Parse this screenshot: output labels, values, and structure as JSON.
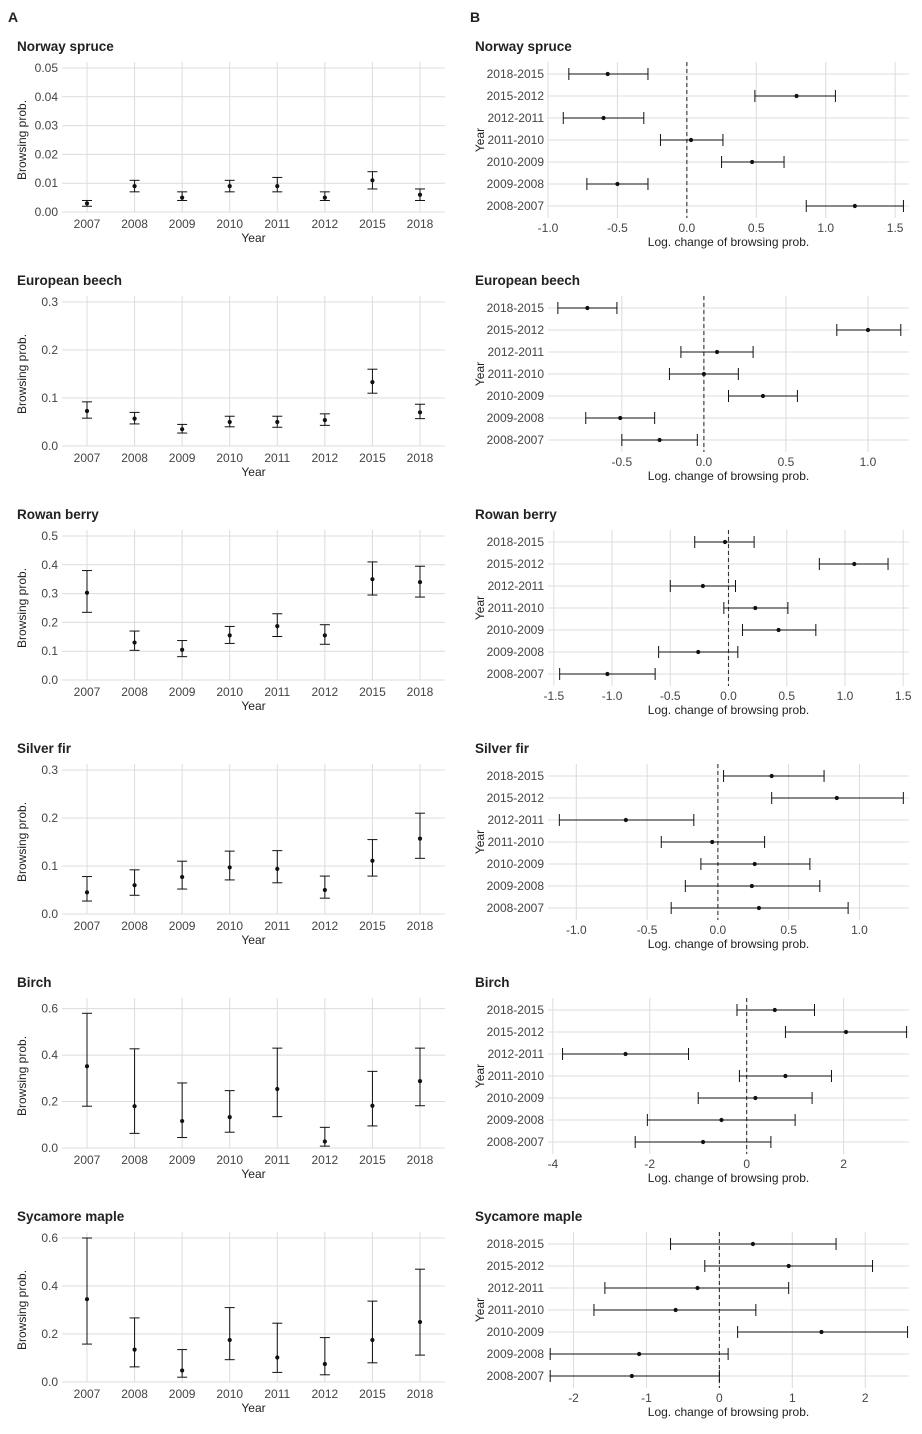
{
  "panel_labels": {
    "a": "A",
    "b": "B"
  },
  "chart_data": [
    {
      "type": "errorbar",
      "panel": "A",
      "title": "Norway spruce",
      "xlabel": "Year",
      "ylabel": "Browsing prob.",
      "categories": [
        "2007",
        "2008",
        "2009",
        "2010",
        "2011",
        "2012",
        "2015",
        "2018"
      ],
      "values": [
        0.003,
        0.009,
        0.005,
        0.009,
        0.009,
        0.005,
        0.011,
        0.006
      ],
      "lower": [
        0.002,
        0.007,
        0.004,
        0.007,
        0.007,
        0.004,
        0.008,
        0.004
      ],
      "upper": [
        0.004,
        0.011,
        0.007,
        0.011,
        0.012,
        0.007,
        0.014,
        0.008
      ],
      "ylim": [
        0,
        0.05
      ],
      "yticks": [
        0,
        0.01,
        0.02,
        0.03,
        0.04,
        0.05
      ],
      "yticklabels": [
        "0.00",
        "0.01",
        "0.02",
        "0.03",
        "0.04",
        "0.05"
      ]
    },
    {
      "type": "forest",
      "panel": "B",
      "title": "Norway spruce",
      "xlabel": "Log. change of browsing prob.",
      "ylabel": "Year",
      "categories": [
        "2018-2015",
        "2015-2012",
        "2012-2011",
        "2011-2010",
        "2010-2009",
        "2009-2008",
        "2008-2007"
      ],
      "values": [
        -0.57,
        0.79,
        -0.6,
        0.03,
        0.47,
        -0.5,
        1.21
      ],
      "lower": [
        -0.85,
        0.49,
        -0.89,
        -0.19,
        0.25,
        -0.72,
        0.86
      ],
      "upper": [
        -0.28,
        1.07,
        -0.31,
        0.26,
        0.7,
        -0.28,
        1.56
      ],
      "xlim": [
        -1.0,
        1.6
      ],
      "xticks": [
        -1.0,
        -0.5,
        0.0,
        0.5,
        1.0,
        1.5
      ],
      "xticklabels": [
        "-1.0",
        "-0.5",
        "0.0",
        "0.5",
        "1.0",
        "1.5"
      ],
      "refline": 0
    },
    {
      "type": "errorbar",
      "panel": "A",
      "title": "European beech",
      "xlabel": "Year",
      "ylabel": "Browsing prob.",
      "categories": [
        "2007",
        "2008",
        "2009",
        "2010",
        "2011",
        "2012",
        "2015",
        "2018"
      ],
      "values": [
        0.073,
        0.057,
        0.035,
        0.05,
        0.05,
        0.054,
        0.133,
        0.07
      ],
      "lower": [
        0.058,
        0.046,
        0.027,
        0.04,
        0.039,
        0.043,
        0.11,
        0.057
      ],
      "upper": [
        0.092,
        0.07,
        0.045,
        0.062,
        0.062,
        0.067,
        0.16,
        0.087
      ],
      "ylim": [
        0,
        0.3
      ],
      "yticks": [
        0,
        0.1,
        0.2,
        0.3
      ],
      "yticklabels": [
        "0.0",
        "0.1",
        "0.2",
        "0.3"
      ]
    },
    {
      "type": "forest",
      "panel": "B",
      "title": "European beech",
      "xlabel": "Log. change of browsing prob.",
      "ylabel": "Year",
      "categories": [
        "2018-2015",
        "2015-2012",
        "2012-2011",
        "2011-2010",
        "2010-2009",
        "2009-2008",
        "2008-2007"
      ],
      "values": [
        -0.71,
        1.0,
        0.08,
        0.0,
        0.36,
        -0.51,
        -0.27
      ],
      "lower": [
        -0.89,
        0.81,
        -0.14,
        -0.21,
        0.15,
        -0.72,
        -0.5
      ],
      "upper": [
        -0.53,
        1.2,
        0.3,
        0.21,
        0.57,
        -0.3,
        -0.04
      ],
      "xlim": [
        -0.95,
        1.25
      ],
      "xticks": [
        -0.5,
        0.0,
        0.5,
        1.0
      ],
      "xticklabels": [
        "-0.5",
        "0.0",
        "0.5",
        "1.0"
      ],
      "refline": 0
    },
    {
      "type": "errorbar",
      "panel": "A",
      "title": "Rowan berry",
      "xlabel": "Year",
      "ylabel": "Browsing prob.",
      "categories": [
        "2007",
        "2008",
        "2009",
        "2010",
        "2011",
        "2012",
        "2015",
        "2018"
      ],
      "values": [
        0.303,
        0.13,
        0.105,
        0.155,
        0.187,
        0.155,
        0.35,
        0.34
      ],
      "lower": [
        0.235,
        0.103,
        0.081,
        0.127,
        0.151,
        0.124,
        0.295,
        0.288
      ],
      "upper": [
        0.38,
        0.17,
        0.137,
        0.186,
        0.23,
        0.192,
        0.41,
        0.395
      ],
      "ylim": [
        0,
        0.5
      ],
      "yticks": [
        0,
        0.1,
        0.2,
        0.3,
        0.4,
        0.5
      ],
      "yticklabels": [
        "0.0",
        "0.1",
        "0.2",
        "0.3",
        "0.4",
        "0.5"
      ]
    },
    {
      "type": "forest",
      "panel": "B",
      "title": "Rowan berry",
      "xlabel": "Log. change of browsing prob.",
      "ylabel": "Year",
      "categories": [
        "2018-2015",
        "2015-2012",
        "2012-2011",
        "2011-2010",
        "2010-2009",
        "2009-2008",
        "2008-2007"
      ],
      "values": [
        -0.03,
        1.08,
        -0.22,
        0.23,
        0.43,
        -0.26,
        -1.04
      ],
      "lower": [
        -0.29,
        0.78,
        -0.5,
        -0.04,
        0.12,
        -0.6,
        -1.45
      ],
      "upper": [
        0.22,
        1.37,
        0.06,
        0.51,
        0.75,
        0.08,
        -0.63
      ],
      "xlim": [
        -1.55,
        1.55
      ],
      "xticks": [
        -1.5,
        -1.0,
        -0.5,
        0.0,
        0.5,
        1.0,
        1.5
      ],
      "xticklabels": [
        "-1.5",
        "-1.0",
        "-0.5",
        "0.0",
        "0.5",
        "1.0",
        "1.5"
      ],
      "refline": 0
    },
    {
      "type": "errorbar",
      "panel": "A",
      "title": "Silver fir",
      "xlabel": "Year",
      "ylabel": "Browsing prob.",
      "categories": [
        "2007",
        "2008",
        "2009",
        "2010",
        "2011",
        "2012",
        "2015",
        "2018"
      ],
      "values": [
        0.045,
        0.06,
        0.077,
        0.097,
        0.094,
        0.05,
        0.111,
        0.157
      ],
      "lower": [
        0.027,
        0.039,
        0.052,
        0.071,
        0.065,
        0.033,
        0.079,
        0.116
      ],
      "upper": [
        0.078,
        0.092,
        0.11,
        0.131,
        0.132,
        0.079,
        0.155,
        0.21
      ],
      "ylim": [
        0,
        0.3
      ],
      "yticks": [
        0,
        0.1,
        0.2,
        0.3
      ],
      "yticklabels": [
        "0.0",
        "0.1",
        "0.2",
        "0.3"
      ]
    },
    {
      "type": "forest",
      "panel": "B",
      "title": "Silver fir",
      "xlabel": "Log. change of browsing prob.",
      "ylabel": "Year",
      "categories": [
        "2018-2015",
        "2015-2012",
        "2012-2011",
        "2011-2010",
        "2010-2009",
        "2009-2008",
        "2008-2007"
      ],
      "values": [
        0.38,
        0.84,
        -0.65,
        -0.04,
        0.26,
        0.24,
        0.29
      ],
      "lower": [
        0.04,
        0.38,
        -1.12,
        -0.4,
        -0.12,
        -0.23,
        -0.33
      ],
      "upper": [
        0.75,
        1.31,
        -0.17,
        0.33,
        0.65,
        0.72,
        0.92
      ],
      "xlim": [
        -1.2,
        1.35
      ],
      "xticks": [
        -1.0,
        -0.5,
        0.0,
        0.5,
        1.0
      ],
      "xticklabels": [
        "-1.0",
        "-0.5",
        "0.0",
        "0.5",
        "1.0"
      ],
      "refline": 0
    },
    {
      "type": "errorbar",
      "panel": "A",
      "title": "Birch",
      "xlabel": "Year",
      "ylabel": "Browsing prob.",
      "categories": [
        "2007",
        "2008",
        "2009",
        "2010",
        "2011",
        "2012",
        "2015",
        "2018"
      ],
      "values": [
        0.352,
        0.18,
        0.116,
        0.133,
        0.254,
        0.028,
        0.182,
        0.288
      ],
      "lower": [
        0.18,
        0.063,
        0.045,
        0.068,
        0.135,
        0.008,
        0.095,
        0.182
      ],
      "upper": [
        0.58,
        0.427,
        0.28,
        0.247,
        0.43,
        0.089,
        0.33,
        0.43
      ],
      "ylim": [
        0,
        0.62
      ],
      "yticks": [
        0,
        0.2,
        0.4,
        0.6
      ],
      "yticklabels": [
        "0.0",
        "0.2",
        "0.4",
        "0.6"
      ]
    },
    {
      "type": "forest",
      "panel": "B",
      "title": "Birch",
      "xlabel": "Log. change of browsing prob.",
      "ylabel": "Year",
      "categories": [
        "2018-2015",
        "2015-2012",
        "2012-2011",
        "2011-2010",
        "2010-2009",
        "2009-2008",
        "2008-2007"
      ],
      "values": [
        0.58,
        2.05,
        -2.5,
        0.8,
        0.18,
        -0.52,
        -0.9
      ],
      "lower": [
        -0.2,
        0.8,
        -3.8,
        -0.15,
        -1.0,
        -2.05,
        -2.3
      ],
      "upper": [
        1.4,
        3.3,
        -1.2,
        1.75,
        1.35,
        1.0,
        0.5
      ],
      "xlim": [
        -4.1,
        3.35
      ],
      "xticks": [
        -4,
        -2,
        0,
        2
      ],
      "xticklabels": [
        "-4",
        "-2",
        "0",
        "2"
      ],
      "refline": 0
    },
    {
      "type": "errorbar",
      "panel": "A",
      "title": "Sycamore maple",
      "xlabel": "Year",
      "ylabel": "Browsing prob.",
      "categories": [
        "2007",
        "2008",
        "2009",
        "2010",
        "2011",
        "2012",
        "2015",
        "2018"
      ],
      "values": [
        0.345,
        0.135,
        0.048,
        0.175,
        0.102,
        0.075,
        0.175,
        0.25
      ],
      "lower": [
        0.158,
        0.063,
        0.02,
        0.093,
        0.04,
        0.03,
        0.08,
        0.112
      ],
      "upper": [
        0.6,
        0.267,
        0.135,
        0.31,
        0.245,
        0.185,
        0.337,
        0.47
      ],
      "ylim": [
        0,
        0.6
      ],
      "yticks": [
        0,
        0.2,
        0.4,
        0.6
      ],
      "yticklabels": [
        "0.0",
        "0.2",
        "0.4",
        "0.6"
      ]
    },
    {
      "type": "forest",
      "panel": "B",
      "title": "Sycamore maple",
      "xlabel": "Log. change of browsing prob.",
      "ylabel": "Year",
      "categories": [
        "2018-2015",
        "2015-2012",
        "2012-2011",
        "2011-2010",
        "2010-2009",
        "2009-2008",
        "2008-2007"
      ],
      "values": [
        0.46,
        0.95,
        -0.3,
        -0.6,
        1.4,
        -1.1,
        -1.2
      ],
      "lower": [
        -0.67,
        -0.2,
        -1.57,
        -1.72,
        0.25,
        -2.32,
        -2.32
      ],
      "upper": [
        1.6,
        2.1,
        0.95,
        0.5,
        2.58,
        0.12,
        0.0
      ],
      "xlim": [
        -2.35,
        2.6
      ],
      "xticks": [
        -2,
        -1,
        0,
        1,
        2
      ],
      "xticklabels": [
        "-2",
        "-1",
        "0",
        "1",
        "2"
      ],
      "refline": 0
    }
  ]
}
